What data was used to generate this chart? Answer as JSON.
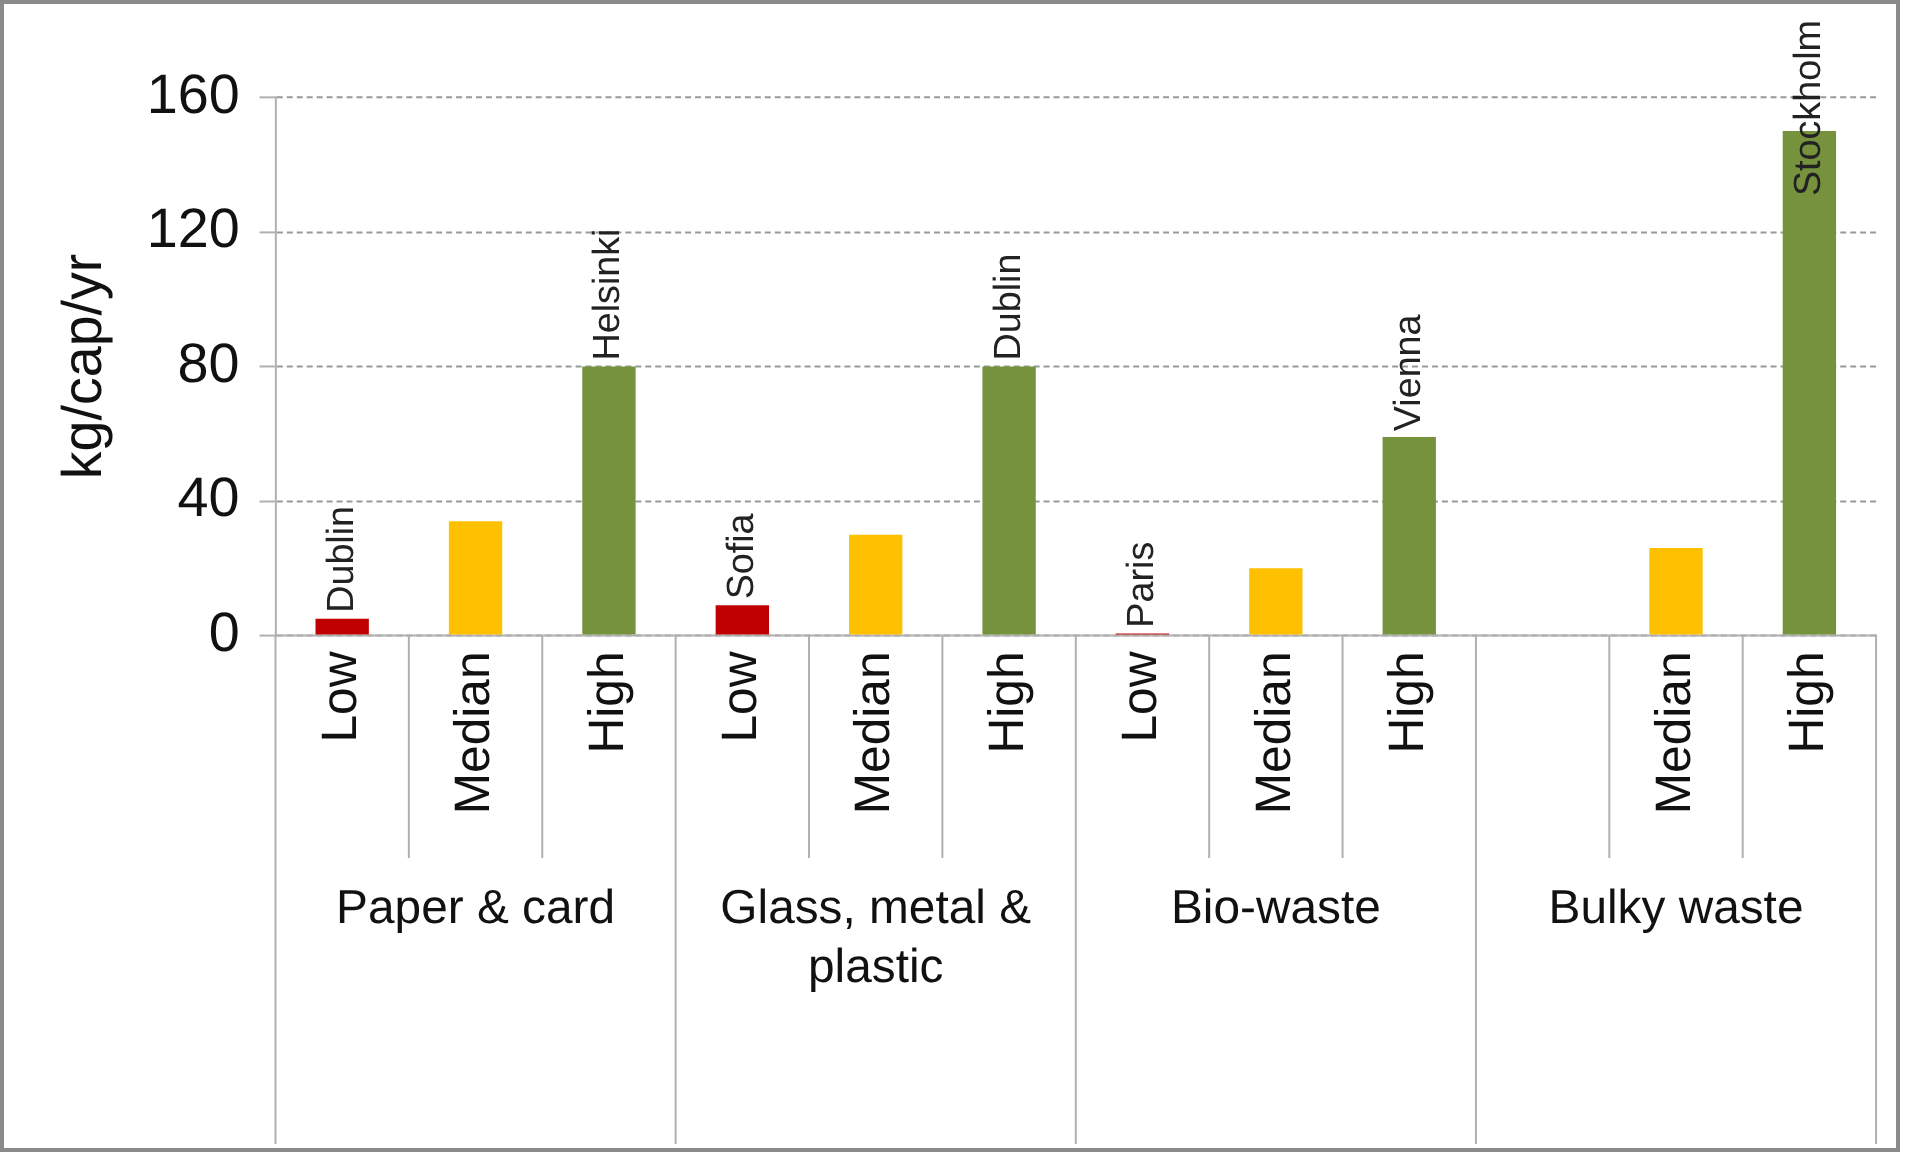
{
  "chart_data": {
    "type": "bar",
    "ylabel": "kg/cap/yr",
    "categories": [
      "Paper & card",
      "Glass, metal & plastic",
      "Bio-waste",
      "Bulky waste"
    ],
    "series": [
      {
        "name": "Low",
        "color": "#c00000",
        "values": [
          5,
          9,
          0,
          null
        ],
        "value_labels": [
          "Dublin",
          "Sofia",
          "Paris",
          null
        ]
      },
      {
        "name": "Median",
        "color": "#ffc000",
        "values": [
          34,
          30,
          20,
          26
        ],
        "value_labels": [
          null,
          null,
          null,
          null
        ]
      },
      {
        "name": "High",
        "color": "#76923c",
        "values": [
          80,
          80,
          59,
          150
        ],
        "value_labels": [
          "Helsinki",
          "Dublin",
          "Vienna",
          "Stockholm"
        ]
      }
    ],
    "ylim": [
      0,
      160
    ],
    "yticks": [
      0,
      40,
      80,
      120,
      160
    ],
    "grid": "y",
    "legend": false
  }
}
